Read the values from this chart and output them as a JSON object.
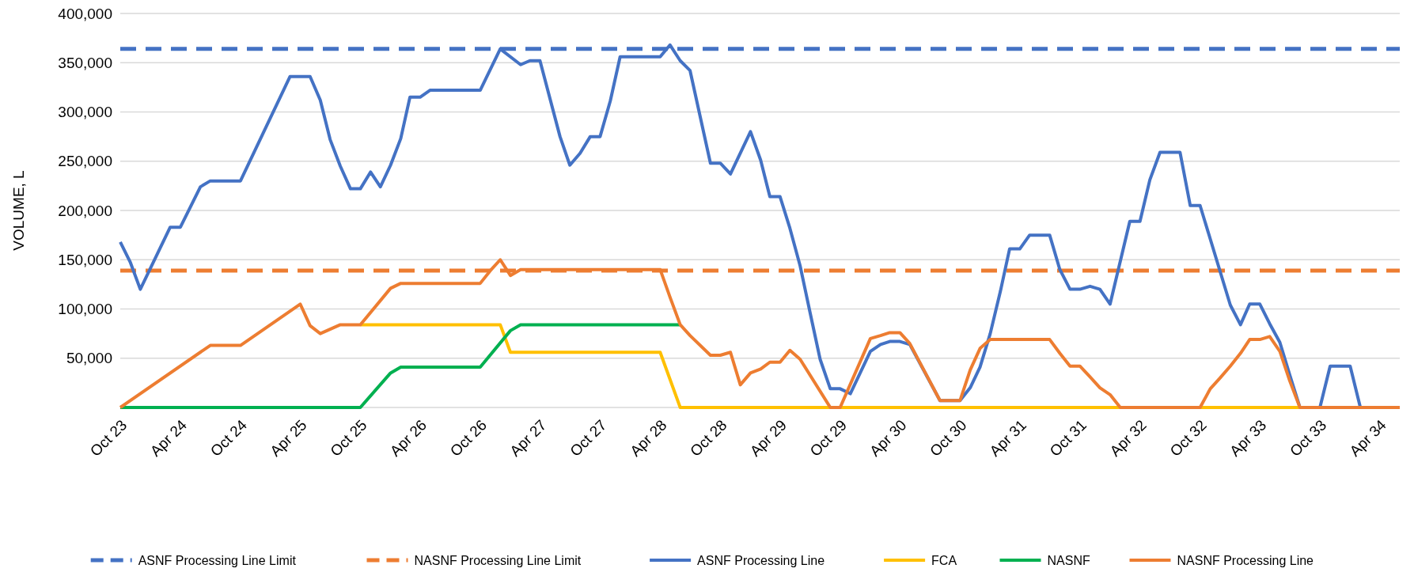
{
  "chart_data": {
    "type": "line",
    "ylabel": "VOLUME, L",
    "legend": "bottom",
    "grid": "y",
    "xlim": [
      "2023-10",
      "2034-06"
    ],
    "ylim": [
      0,
      400000
    ],
    "xticks": [
      {
        "value": "2023-10",
        "label": "Oct 23"
      },
      {
        "value": "2024-04",
        "label": "Apr 24"
      },
      {
        "value": "2024-10",
        "label": "Oct 24"
      },
      {
        "value": "2025-04",
        "label": "Apr 25"
      },
      {
        "value": "2025-10",
        "label": "Oct 25"
      },
      {
        "value": "2026-04",
        "label": "Apr 26"
      },
      {
        "value": "2026-10",
        "label": "Oct 26"
      },
      {
        "value": "2027-04",
        "label": "Apr 27"
      },
      {
        "value": "2027-10",
        "label": "Oct 27"
      },
      {
        "value": "2028-04",
        "label": "Apr 28"
      },
      {
        "value": "2028-10",
        "label": "Oct 28"
      },
      {
        "value": "2029-04",
        "label": "Apr 29"
      },
      {
        "value": "2029-10",
        "label": "Oct 29"
      },
      {
        "value": "2030-04",
        "label": "Apr 30"
      },
      {
        "value": "2030-10",
        "label": "Oct 30"
      },
      {
        "value": "2031-04",
        "label": "Apr 31"
      },
      {
        "value": "2031-10",
        "label": "Oct 31"
      },
      {
        "value": "2032-04",
        "label": "Apr 32"
      },
      {
        "value": "2032-10",
        "label": "Oct 32"
      },
      {
        "value": "2033-04",
        "label": "Apr 33"
      },
      {
        "value": "2033-10",
        "label": "Oct 33"
      },
      {
        "value": "2034-04",
        "label": "Apr 34"
      }
    ],
    "yticks": [
      {
        "value": 50000,
        "label": "50,000"
      },
      {
        "value": 100000,
        "label": "100,000"
      },
      {
        "value": 150000,
        "label": "150,000"
      },
      {
        "value": 200000,
        "label": "200,000"
      },
      {
        "value": 250000,
        "label": "250,000"
      },
      {
        "value": 300000,
        "label": "300,000"
      },
      {
        "value": 350000,
        "label": "350,000"
      },
      {
        "value": 400000,
        "label": "400,000"
      }
    ],
    "series": [
      {
        "name": "ASNF Processing Line Limit",
        "color": "#4472c4",
        "line_style": "dashed",
        "x": [
          "2023-10",
          "2034-06"
        ],
        "values": [
          364000,
          364000
        ]
      },
      {
        "name": "NASNF Processing Line Limit",
        "color": "#ed7d31",
        "line_style": "dashed",
        "x": [
          "2023-10",
          "2034-06"
        ],
        "values": [
          139000,
          139000
        ]
      },
      {
        "name": "ASNF Processing Line",
        "color": "#4472c4",
        "line_style": "solid",
        "x": [
          "2023-10",
          "2023-11",
          "2023-12",
          "2024-03",
          "2024-04",
          "2024-06",
          "2024-07",
          "2024-10",
          "2025-03",
          "2025-05",
          "2025-06",
          "2025-07",
          "2025-08",
          "2025-09",
          "2025-10",
          "2025-11",
          "2025-12",
          "2026-01",
          "2026-02",
          "2026-03",
          "2026-04",
          "2026-05",
          "2026-10",
          "2026-12",
          "2027-02",
          "2027-03",
          "2027-04",
          "2027-06",
          "2027-07",
          "2027-08",
          "2027-09",
          "2027-10",
          "2027-11",
          "2027-12",
          "2028-04",
          "2028-05",
          "2028-06",
          "2028-07",
          "2028-09",
          "2028-10",
          "2028-11",
          "2029-01",
          "2029-02",
          "2029-03",
          "2029-04",
          "2029-05",
          "2029-06",
          "2029-07",
          "2029-08",
          "2029-09",
          "2029-10",
          "2029-11",
          "2030-01",
          "2030-02",
          "2030-03",
          "2030-04",
          "2030-05",
          "2030-08",
          "2030-10",
          "2030-11",
          "2030-12",
          "2031-01",
          "2031-02",
          "2031-03",
          "2031-04",
          "2031-05",
          "2031-07",
          "2031-08",
          "2031-09",
          "2031-10",
          "2031-11",
          "2031-12",
          "2032-01",
          "2032-03",
          "2032-04",
          "2032-05",
          "2032-06",
          "2032-08",
          "2032-09",
          "2032-10",
          "2033-01",
          "2033-02",
          "2033-03",
          "2033-04",
          "2033-05",
          "2033-06",
          "2033-07",
          "2033-08",
          "2033-10",
          "2033-11",
          "2034-01",
          "2034-02",
          "2034-06"
        ],
        "values": [
          168000,
          147000,
          120000,
          183000,
          183000,
          224000,
          230000,
          230000,
          336000,
          336000,
          312000,
          272000,
          245000,
          222000,
          222000,
          239000,
          224000,
          246000,
          273000,
          315000,
          315000,
          322000,
          322000,
          364000,
          348000,
          352000,
          352000,
          275000,
          246000,
          258000,
          275000,
          275000,
          311000,
          356000,
          356000,
          368000,
          352000,
          342000,
          248000,
          248000,
          237000,
          280000,
          251000,
          214000,
          214000,
          182000,
          144000,
          97000,
          49000,
          19000,
          19000,
          14000,
          57000,
          64000,
          67000,
          67000,
          64000,
          7000,
          7000,
          20000,
          41000,
          75000,
          118000,
          161000,
          161000,
          175000,
          175000,
          140000,
          120000,
          120000,
          123000,
          120000,
          105000,
          189000,
          189000,
          231000,
          259000,
          259000,
          205000,
          205000,
          104000,
          84000,
          105000,
          105000,
          85000,
          66000,
          33000,
          0,
          0,
          42000,
          42000,
          0,
          0
        ]
      },
      {
        "name": "FCA",
        "color": "#ffc000",
        "line_style": "solid",
        "x": [
          "2025-10",
          "2026-12",
          "2027-01",
          "2028-04",
          "2028-06",
          "2034-06"
        ],
        "values": [
          84000,
          84000,
          56000,
          56000,
          0,
          0
        ]
      },
      {
        "name": "NASNF",
        "color": "#00b050",
        "line_style": "solid",
        "x": [
          "2023-10",
          "2025-10",
          "2026-01",
          "2026-02",
          "2026-10",
          "2027-01",
          "2027-02",
          "2028-06"
        ],
        "values": [
          0,
          0,
          35000,
          41000,
          41000,
          78000,
          84000,
          84000
        ]
      },
      {
        "name": "NASNF Processing Line",
        "color": "#ed7d31",
        "line_style": "solid",
        "x": [
          "2023-10",
          "2024-07",
          "2024-10",
          "2025-04",
          "2025-05",
          "2025-06",
          "2025-08",
          "2025-10",
          "2026-01",
          "2026-02",
          "2026-10",
          "2026-11",
          "2026-12",
          "2027-01",
          "2027-02",
          "2028-04",
          "2028-05",
          "2028-06",
          "2028-07",
          "2028-09",
          "2028-10",
          "2028-11",
          "2028-12",
          "2029-01",
          "2029-02",
          "2029-03",
          "2029-04",
          "2029-05",
          "2029-06",
          "2029-09",
          "2029-10",
          "2030-01",
          "2030-02",
          "2030-03",
          "2030-04",
          "2030-05",
          "2030-08",
          "2030-10",
          "2030-11",
          "2030-12",
          "2031-01",
          "2031-07",
          "2031-08",
          "2031-09",
          "2031-10",
          "2031-11",
          "2031-12",
          "2032-01",
          "2032-02",
          "2032-10",
          "2032-11",
          "2032-12",
          "2033-01",
          "2033-02",
          "2033-03",
          "2033-04",
          "2033-05",
          "2033-06",
          "2033-07",
          "2033-08",
          "2034-06"
        ],
        "values": [
          0,
          63000,
          63000,
          105000,
          83000,
          75000,
          84000,
          84000,
          121000,
          126000,
          126000,
          139000,
          150000,
          134000,
          140000,
          140000,
          112000,
          84000,
          73000,
          53000,
          53000,
          56000,
          23000,
          35000,
          39000,
          46000,
          46000,
          58000,
          49000,
          0,
          0,
          70000,
          73000,
          76000,
          76000,
          65000,
          7000,
          7000,
          38000,
          60000,
          69000,
          69000,
          55000,
          42000,
          42000,
          31000,
          20000,
          13000,
          0,
          0,
          19000,
          30000,
          42000,
          55000,
          69000,
          69000,
          72000,
          57000,
          27000,
          0,
          0
        ]
      }
    ]
  }
}
